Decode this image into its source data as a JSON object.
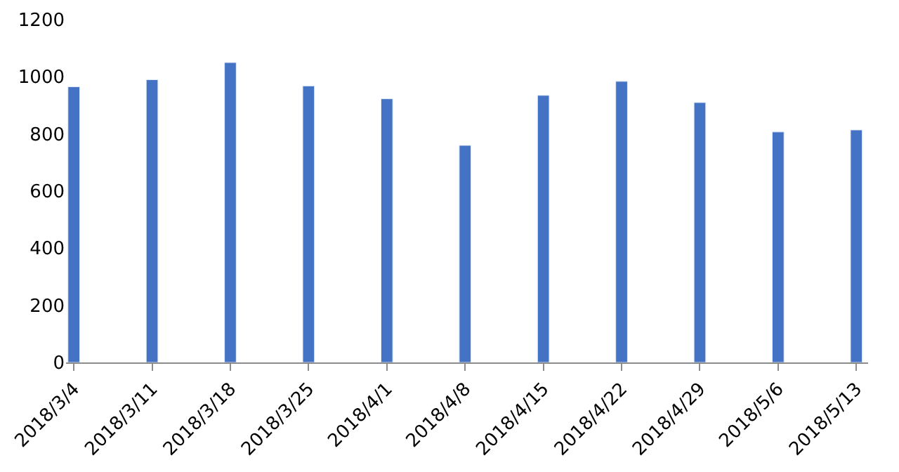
{
  "chart_data": {
    "type": "bar",
    "categories": [
      "2018/3/4",
      "2018/3/11",
      "2018/3/18",
      "2018/3/25",
      "2018/4/1",
      "2018/4/8",
      "2018/4/15",
      "2018/4/22",
      "2018/4/29",
      "2018/5/6",
      "2018/5/13"
    ],
    "values": [
      965,
      990,
      1050,
      968,
      923,
      760,
      935,
      984,
      910,
      807,
      814
    ],
    "color": "#4472c4",
    "ylim": [
      0,
      1200
    ],
    "yticks": [
      0,
      200,
      400,
      600,
      800,
      1000,
      1200
    ],
    "legend": false
  }
}
